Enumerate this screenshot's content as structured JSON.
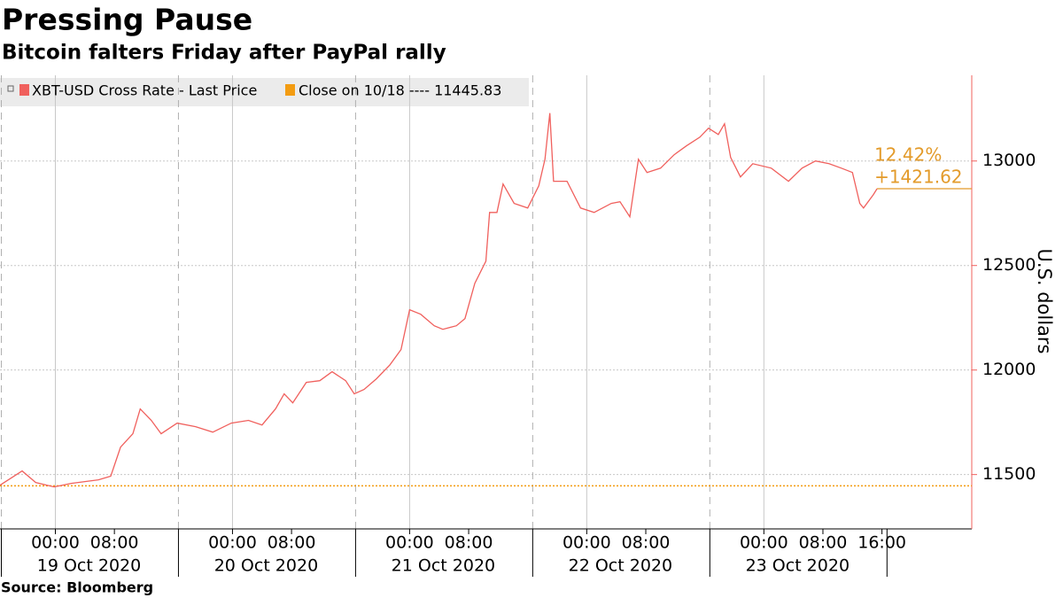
{
  "chart_data": {
    "type": "line",
    "title": "Pressing Pause",
    "subtitle": "Bitcoin falters Friday after PayPal rally",
    "source": "Source: Bloomberg",
    "y_axis_label": "U.S. dollars",
    "series": [
      {
        "name": "XBT-USD Cross Rate - Last Price",
        "color": "#f0605d",
        "x": [
          "2020-10-18 16:30",
          "2020-10-18 19:30",
          "2020-10-18 21:20",
          "2020-10-18 23:50",
          "2020-10-19 02:10",
          "2020-10-19 05:50",
          "2020-10-19 07:30",
          "2020-10-19 08:50",
          "2020-10-19 10:30",
          "2020-10-19 11:30",
          "2020-10-19 13:00",
          "2020-10-19 14:20",
          "2020-10-19 16:30",
          "2020-10-19 19:00",
          "2020-10-19 21:20",
          "2020-10-19 23:50",
          "2020-10-20 02:10",
          "2020-10-20 04:00",
          "2020-10-20 05:50",
          "2020-10-20 07:00",
          "2020-10-20 08:10",
          "2020-10-20 10:00",
          "2020-10-20 11:50",
          "2020-10-20 13:30",
          "2020-10-20 15:20",
          "2020-10-20 16:30",
          "2020-10-20 17:50",
          "2020-10-20 19:30",
          "2020-10-20 21:20",
          "2020-10-20 22:50",
          "2020-10-21 00:00",
          "2020-10-21 01:30",
          "2020-10-21 03:20",
          "2020-10-21 04:30",
          "2020-10-21 06:20",
          "2020-10-21 07:30",
          "2020-10-21 08:50",
          "2020-10-21 10:20",
          "2020-10-21 10:50",
          "2020-10-21 11:50",
          "2020-10-21 12:40",
          "2020-10-21 14:10",
          "2020-10-21 16:00",
          "2020-10-21 17:30",
          "2020-10-21 18:20",
          "2020-10-21 19:00",
          "2020-10-21 19:30",
          "2020-10-21 21:20",
          "2020-10-21 23:10",
          "2020-10-22 01:00",
          "2020-10-22 03:20",
          "2020-10-22 04:30",
          "2020-10-22 05:50",
          "2020-10-22 07:00",
          "2020-10-22 08:10",
          "2020-10-22 10:00",
          "2020-10-22 11:50",
          "2020-10-22 13:30",
          "2020-10-22 15:20",
          "2020-10-22 16:30",
          "2020-10-22 17:50",
          "2020-10-22 18:40",
          "2020-10-22 19:30",
          "2020-10-22 20:50",
          "2020-10-22 22:30",
          "2020-10-23 01:00",
          "2020-10-23 03:20",
          "2020-10-23 05:10",
          "2020-10-23 07:00",
          "2020-10-23 08:50",
          "2020-10-23 10:30",
          "2020-10-23 12:00",
          "2020-10-23 13:00",
          "2020-10-23 13:30",
          "2020-10-23 14:50",
          "2020-10-23 15:20"
        ],
        "values": [
          11449,
          11517,
          11462,
          11441,
          11458,
          11475,
          11492,
          11631,
          11695,
          11814,
          11759,
          11695,
          11746,
          11729,
          11703,
          11746,
          11759,
          11737,
          11814,
          11886,
          11843,
          11941,
          11949,
          11992,
          11949,
          11886,
          11907,
          11958,
          12025,
          12098,
          12288,
          12267,
          12212,
          12195,
          12212,
          12246,
          12415,
          12521,
          12754,
          12754,
          12890,
          12797,
          12775,
          12881,
          13008,
          13229,
          12903,
          12903,
          12775,
          12754,
          12797,
          12805,
          12733,
          13008,
          12945,
          12966,
          13030,
          13072,
          13114,
          13157,
          13127,
          13178,
          13017,
          12924,
          12987,
          12966,
          12903,
          12966,
          13000,
          12987,
          12966,
          12945,
          12797,
          12775,
          12839,
          12867.45
        ]
      }
    ],
    "reference_line": {
      "label": "Close on 10/18 ---- 11445.83",
      "value": 11445.83,
      "color": "#f39c12"
    },
    "annotations": [
      "12.42%",
      "+1421.62"
    ],
    "annotation_color": "#e39b2b",
    "xlim": [
      "2020-10-18 16:30",
      "2020-10-24 04:10"
    ],
    "xticks": [
      {
        "value": "2020-10-19 00:00",
        "label": "00:00"
      },
      {
        "value": "2020-10-19 08:00",
        "label": "08:00"
      },
      {
        "value": "2020-10-20 00:00",
        "label": "00:00"
      },
      {
        "value": "2020-10-20 08:00",
        "label": "08:00"
      },
      {
        "value": "2020-10-21 00:00",
        "label": "00:00"
      },
      {
        "value": "2020-10-21 08:00",
        "label": "08:00"
      },
      {
        "value": "2020-10-22 00:00",
        "label": "00:00"
      },
      {
        "value": "2020-10-22 08:00",
        "label": "08:00"
      },
      {
        "value": "2020-10-23 00:00",
        "label": "00:00"
      },
      {
        "value": "2020-10-23 08:00",
        "label": "08:00"
      },
      {
        "value": "2020-10-23 16:00",
        "label": "16:00"
      }
    ],
    "date_labels": [
      "19 Oct 2020",
      "20 Oct 2020",
      "21 Oct 2020",
      "22 Oct 2020",
      "23 Oct 2020"
    ],
    "ylim": [
      11240,
      13410
    ],
    "yticks": [
      11500,
      12000,
      12500,
      13000
    ],
    "grid": true
  }
}
